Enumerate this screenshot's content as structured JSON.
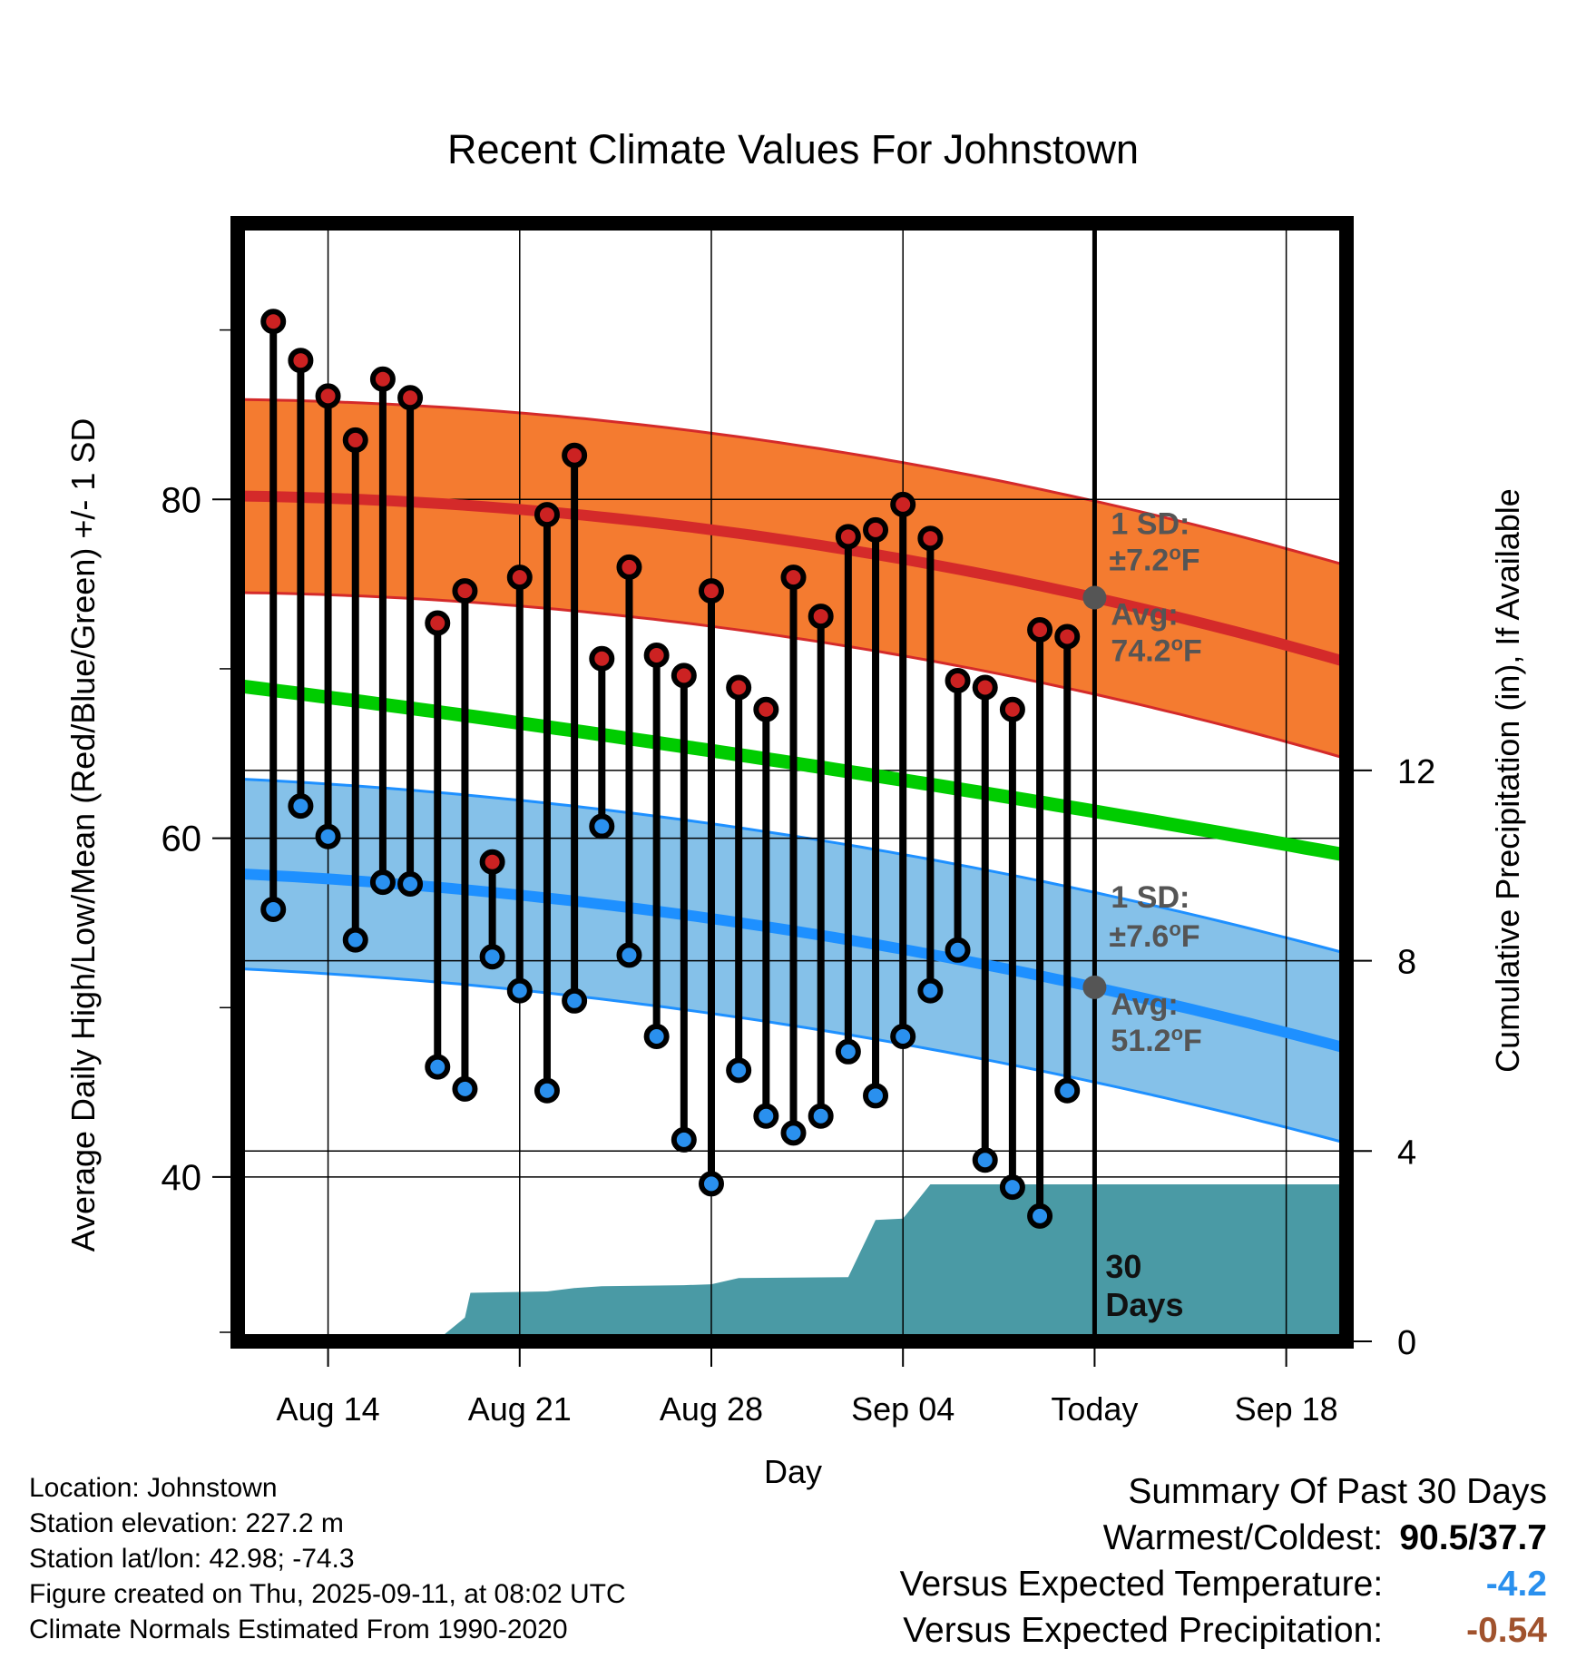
{
  "chart_data": {
    "type": "line",
    "title": "Recent Climate Values For Johnstown",
    "xlabel": "Day",
    "ylabel_left": "Average Daily High/Low/Mean (Red/Blue/Green) +/- 1 SD",
    "ylabel_right": "Cumulative Precipitation (in), If Available",
    "x_ticks": [
      {
        "day": 3,
        "label": "Aug 14"
      },
      {
        "day": 10,
        "label": "Aug 21"
      },
      {
        "day": 17,
        "label": "Aug 28"
      },
      {
        "day": 24,
        "label": "Sep 04"
      },
      {
        "day": 31,
        "label": "Today"
      },
      {
        "day": 38,
        "label": "Sep 18"
      }
    ],
    "xlim": [
      -0.3,
      40.2
    ],
    "ylim_left": [
      30.3,
      96.3
    ],
    "y_ticks_left": [
      40,
      60,
      80
    ],
    "ylim_right": [
      0,
      23.5
    ],
    "y_ticks_right": [
      0,
      4,
      8,
      12
    ],
    "today_index": 31,
    "high_values": [
      90.5,
      88.2,
      86.1,
      83.5,
      87.1,
      86.0,
      72.7,
      74.6,
      58.6,
      75.4,
      79.1,
      82.6,
      70.6,
      76.0,
      70.8,
      69.6,
      74.6,
      68.9,
      67.6,
      75.4,
      73.1,
      77.8,
      78.2,
      79.7,
      77.7,
      69.3,
      68.9,
      67.6,
      72.3,
      71.9
    ],
    "low_values": [
      55.8,
      61.9,
      60.1,
      54.0,
      57.4,
      57.3,
      46.5,
      45.2,
      53.0,
      51.0,
      45.1,
      50.4,
      60.7,
      53.1,
      48.3,
      42.2,
      39.6,
      46.3,
      43.6,
      42.6,
      43.6,
      47.4,
      44.8,
      48.3,
      51.0,
      53.4,
      41.0,
      39.4,
      37.7,
      45.1
    ],
    "normal_high": {
      "start": 80.2,
      "mid_day": 31,
      "mid": 74.2,
      "end": 70.4
    },
    "normal_low": {
      "start": 57.9,
      "mid_day": 31,
      "mid": 51.2,
      "end": 47.6
    },
    "normal_mean": {
      "start": 69.0,
      "end": 59.0
    },
    "sd_high": 5.7,
    "sd_low": 5.6,
    "precip_cumulative": [
      {
        "day": 0,
        "value": 0
      },
      {
        "day": 6,
        "value": 0.01
      },
      {
        "day": 7,
        "value": 0.03
      },
      {
        "day": 8,
        "value": 0.5
      },
      {
        "day": 8.2,
        "value": 1.02
      },
      {
        "day": 11,
        "value": 1.05
      },
      {
        "day": 12,
        "value": 1.12
      },
      {
        "day": 13,
        "value": 1.16
      },
      {
        "day": 16,
        "value": 1.18
      },
      {
        "day": 17,
        "value": 1.2
      },
      {
        "day": 18,
        "value": 1.33
      },
      {
        "day": 22,
        "value": 1.35
      },
      {
        "day": 23,
        "value": 2.55
      },
      {
        "day": 24,
        "value": 2.58
      },
      {
        "day": 25,
        "value": 3.3
      },
      {
        "day": 28,
        "value": 3.3
      },
      {
        "day": 40.2,
        "value": 3.3
      }
    ],
    "annotations": {
      "high_sd_label": "1 SD:",
      "high_sd_value": "±7.2",
      "high_avg_label": "Avg:",
      "high_avg_value": "74.2",
      "low_sd_label": "1 SD:",
      "low_sd_value": "±7.6",
      "low_avg_label": "Avg:",
      "low_avg_value": "51.2",
      "degree_symbol": "o",
      "unit": "F",
      "days_number": "30",
      "days_word": "Days"
    },
    "colors": {
      "high_band": "#f47b30",
      "high_line": "#d42a2a",
      "low_band": "#85c1e9",
      "low_line": "#1e90ff",
      "mean_line": "#00cc00",
      "precip": "#4a9aa5",
      "high_dot": "#cc2222",
      "low_dot": "#2a90ee",
      "marker": "#555555",
      "annotation_text": "#555555"
    }
  },
  "footer": {
    "location": "Location: Johnstown",
    "elevation": "Station elevation: 227.2 m",
    "latlon": "Station lat/lon: 42.98; -74.3",
    "created": "Figure created on Thu, 2025-09-11, at 08:02 UTC",
    "normals": "Climate Normals Estimated From 1990-2020"
  },
  "summary": {
    "title": "Summary Of Past 30 Days",
    "warm_cold_label": "Warmest/Coldest:",
    "warm_cold_value": "90.5/37.7",
    "temp_label": "Versus Expected Temperature:",
    "temp_value": "-4.2",
    "temp_color": "#2a90ee",
    "precip_label": "Versus Expected Precipitation:",
    "precip_value": "-0.54",
    "precip_color": "#a0522d"
  }
}
